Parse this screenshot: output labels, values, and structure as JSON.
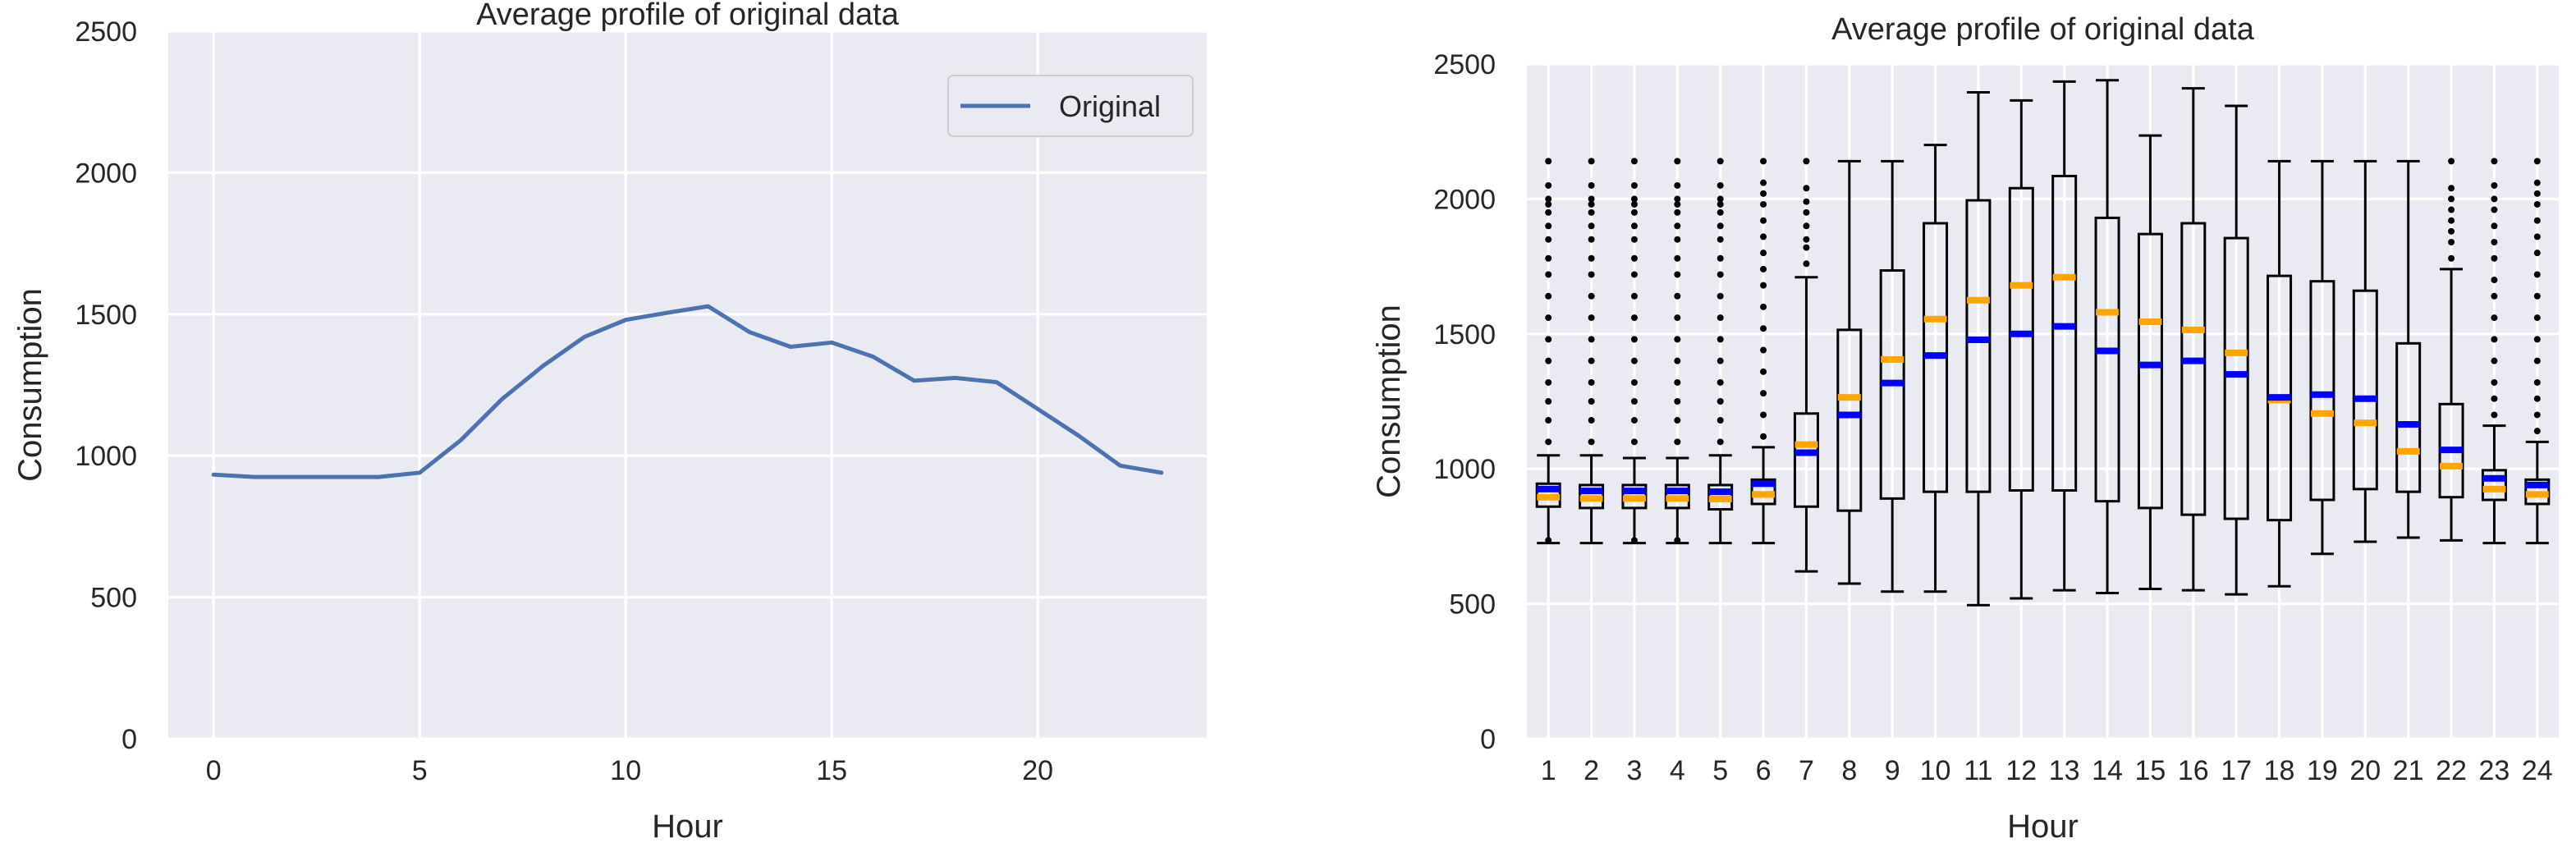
{
  "chart_data": [
    {
      "type": "line",
      "title": "Average profile of original data",
      "xlabel": "Hour",
      "ylabel": "Consumption",
      "xlim": [
        -1.1,
        24.1
      ],
      "ylim": [
        0,
        2500
      ],
      "xticks": [
        0,
        5,
        10,
        15,
        20
      ],
      "xtick_labels": [
        "0",
        "5",
        "10",
        "15",
        "20"
      ],
      "yticks": [
        0,
        500,
        1000,
        1500,
        2000,
        2500
      ],
      "ytick_labels": [
        "0",
        "500",
        "1000",
        "1500",
        "2000",
        "2500"
      ],
      "grid": true,
      "legend_position": "upper right",
      "colors": {
        "background": "#EAEAF2",
        "line": "#4C72B0",
        "grid": "#FFFFFF"
      },
      "series": [
        {
          "name": "Original",
          "x": [
            0,
            1,
            2,
            3,
            4,
            5,
            6,
            7,
            8,
            9,
            10,
            11,
            12,
            13,
            14,
            15,
            16,
            17,
            18,
            19,
            20,
            21,
            22,
            23
          ],
          "values": [
            933,
            925,
            925,
            925,
            925,
            940,
            1055,
            1200,
            1318,
            1420,
            1480,
            1505,
            1528,
            1437,
            1385,
            1400,
            1350,
            1265,
            1275,
            1260,
            1165,
            1070,
            965,
            940
          ]
        }
      ]
    },
    {
      "type": "box",
      "title": "Average profile of original data",
      "xlabel": "Hour",
      "ylabel": "Consumption",
      "ylim": [
        0,
        2500
      ],
      "yticks": [
        0,
        500,
        1000,
        1500,
        2000,
        2500
      ],
      "ytick_labels": [
        "0",
        "500",
        "1000",
        "1500",
        "2000",
        "2500"
      ],
      "grid": true,
      "colors": {
        "background": "#EAEAF2",
        "mean": "#0000FF",
        "median": "#FFA500",
        "box": "#000000",
        "grid": "#FFFFFF"
      },
      "categories": [
        "1",
        "2",
        "3",
        "4",
        "5",
        "6",
        "7",
        "8",
        "9",
        "10",
        "11",
        "12",
        "13",
        "14",
        "15",
        "16",
        "17",
        "18",
        "19",
        "20",
        "21",
        "22",
        "23",
        "24"
      ],
      "boxes": [
        {
          "whisker_low": 725,
          "q1": 860,
          "median": 895,
          "q3": 945,
          "whisker_high": 1050,
          "mean": 925,
          "outlier_high": [
            1100,
            1180,
            1250,
            1320,
            1400,
            1480,
            1560,
            1640,
            1720,
            1780,
            1850,
            1900,
            1950,
            1980,
            2000,
            2050,
            2140
          ],
          "outlier_low": [
            735
          ]
        },
        {
          "whisker_low": 725,
          "q1": 855,
          "median": 890,
          "q3": 940,
          "whisker_high": 1050,
          "mean": 918,
          "outlier_high": [
            1100,
            1180,
            1250,
            1320,
            1400,
            1480,
            1560,
            1640,
            1720,
            1780,
            1850,
            1900,
            1950,
            1980,
            2000,
            2050,
            2140
          ],
          "outlier_low": []
        },
        {
          "whisker_low": 725,
          "q1": 855,
          "median": 890,
          "q3": 940,
          "whisker_high": 1040,
          "mean": 918,
          "outlier_high": [
            1100,
            1180,
            1250,
            1320,
            1400,
            1480,
            1560,
            1640,
            1720,
            1780,
            1850,
            1900,
            1950,
            1980,
            2000,
            2050,
            2140
          ],
          "outlier_low": [
            735
          ]
        },
        {
          "whisker_low": 725,
          "q1": 855,
          "median": 890,
          "q3": 940,
          "whisker_high": 1040,
          "mean": 918,
          "outlier_high": [
            1100,
            1180,
            1250,
            1320,
            1400,
            1480,
            1560,
            1640,
            1720,
            1780,
            1850,
            1900,
            1950,
            1980,
            2000,
            2050,
            2140
          ],
          "outlier_low": [
            735
          ]
        },
        {
          "whisker_low": 725,
          "q1": 850,
          "median": 888,
          "q3": 940,
          "whisker_high": 1050,
          "mean": 915,
          "outlier_high": [
            1100,
            1180,
            1250,
            1320,
            1400,
            1480,
            1560,
            1640,
            1720,
            1780,
            1850,
            1900,
            1950,
            1980,
            2000,
            2050,
            2140
          ],
          "outlier_low": []
        },
        {
          "whisker_low": 725,
          "q1": 870,
          "median": 905,
          "q3": 960,
          "whisker_high": 1080,
          "mean": 945,
          "outlier_high": [
            1120,
            1200,
            1280,
            1360,
            1440,
            1520,
            1600,
            1680,
            1740,
            1800,
            1860,
            1920,
            1980,
            2020,
            2060,
            2140
          ],
          "outlier_low": []
        },
        {
          "whisker_low": 620,
          "q1": 860,
          "median": 1090,
          "q3": 1205,
          "whisker_high": 1710,
          "mean": 1060,
          "outlier_high": [
            1760,
            1820,
            1850,
            1900,
            1950,
            1990,
            2040,
            2140
          ],
          "outlier_low": []
        },
        {
          "whisker_low": 575,
          "q1": 845,
          "median": 1265,
          "q3": 1515,
          "whisker_high": 2140,
          "mean": 1200,
          "outlier_high": [],
          "outlier_low": []
        },
        {
          "whisker_low": 545,
          "q1": 890,
          "median": 1405,
          "q3": 1735,
          "whisker_high": 2140,
          "mean": 1318,
          "outlier_high": [],
          "outlier_low": []
        },
        {
          "whisker_low": 545,
          "q1": 915,
          "median": 1555,
          "q3": 1910,
          "whisker_high": 2200,
          "mean": 1420,
          "outlier_high": [],
          "outlier_low": []
        },
        {
          "whisker_low": 495,
          "q1": 915,
          "median": 1625,
          "q3": 1995,
          "whisker_high": 2395,
          "mean": 1478,
          "outlier_high": [],
          "outlier_low": []
        },
        {
          "whisker_low": 520,
          "q1": 920,
          "median": 1680,
          "q3": 2040,
          "whisker_high": 2365,
          "mean": 1500,
          "outlier_high": [],
          "outlier_low": []
        },
        {
          "whisker_low": 550,
          "q1": 920,
          "median": 1710,
          "q3": 2085,
          "whisker_high": 2435,
          "mean": 1528,
          "outlier_high": [],
          "outlier_low": []
        },
        {
          "whisker_low": 540,
          "q1": 880,
          "median": 1580,
          "q3": 1930,
          "whisker_high": 2440,
          "mean": 1437,
          "outlier_high": [],
          "outlier_low": []
        },
        {
          "whisker_low": 555,
          "q1": 855,
          "median": 1545,
          "q3": 1870,
          "whisker_high": 2235,
          "mean": 1385,
          "outlier_high": [],
          "outlier_low": []
        },
        {
          "whisker_low": 550,
          "q1": 830,
          "median": 1515,
          "q3": 1910,
          "whisker_high": 2410,
          "mean": 1400,
          "outlier_high": [],
          "outlier_low": []
        },
        {
          "whisker_low": 535,
          "q1": 815,
          "median": 1430,
          "q3": 1855,
          "whisker_high": 2345,
          "mean": 1350,
          "outlier_high": [],
          "outlier_low": []
        },
        {
          "whisker_low": 565,
          "q1": 810,
          "median": 1255,
          "q3": 1715,
          "whisker_high": 2140,
          "mean": 1265,
          "outlier_high": [],
          "outlier_low": []
        },
        {
          "whisker_low": 685,
          "q1": 885,
          "median": 1205,
          "q3": 1695,
          "whisker_high": 2140,
          "mean": 1275,
          "outlier_high": [],
          "outlier_low": []
        },
        {
          "whisker_low": 730,
          "q1": 925,
          "median": 1170,
          "q3": 1660,
          "whisker_high": 2140,
          "mean": 1260,
          "outlier_high": [],
          "outlier_low": []
        },
        {
          "whisker_low": 745,
          "q1": 915,
          "median": 1065,
          "q3": 1465,
          "whisker_high": 2140,
          "mean": 1165,
          "outlier_high": [],
          "outlier_low": []
        },
        {
          "whisker_low": 735,
          "q1": 895,
          "median": 1010,
          "q3": 1240,
          "whisker_high": 1740,
          "mean": 1070,
          "outlier_high": [
            1780,
            1840,
            1880,
            1920,
            1960,
            2000,
            2040,
            2140
          ],
          "outlier_low": []
        },
        {
          "whisker_low": 725,
          "q1": 885,
          "median": 925,
          "q3": 995,
          "whisker_high": 1160,
          "mean": 965,
          "outlier_high": [
            1200,
            1260,
            1320,
            1400,
            1480,
            1560,
            1640,
            1700,
            1780,
            1840,
            1900,
            1960,
            2000,
            2050,
            2140
          ],
          "outlier_low": []
        },
        {
          "whisker_low": 725,
          "q1": 870,
          "median": 905,
          "q3": 960,
          "whisker_high": 1100,
          "mean": 940,
          "outlier_high": [
            1140,
            1200,
            1260,
            1320,
            1400,
            1480,
            1560,
            1640,
            1720,
            1800,
            1860,
            1920,
            1980,
            2020,
            2060,
            2140
          ],
          "outlier_low": []
        }
      ]
    }
  ]
}
